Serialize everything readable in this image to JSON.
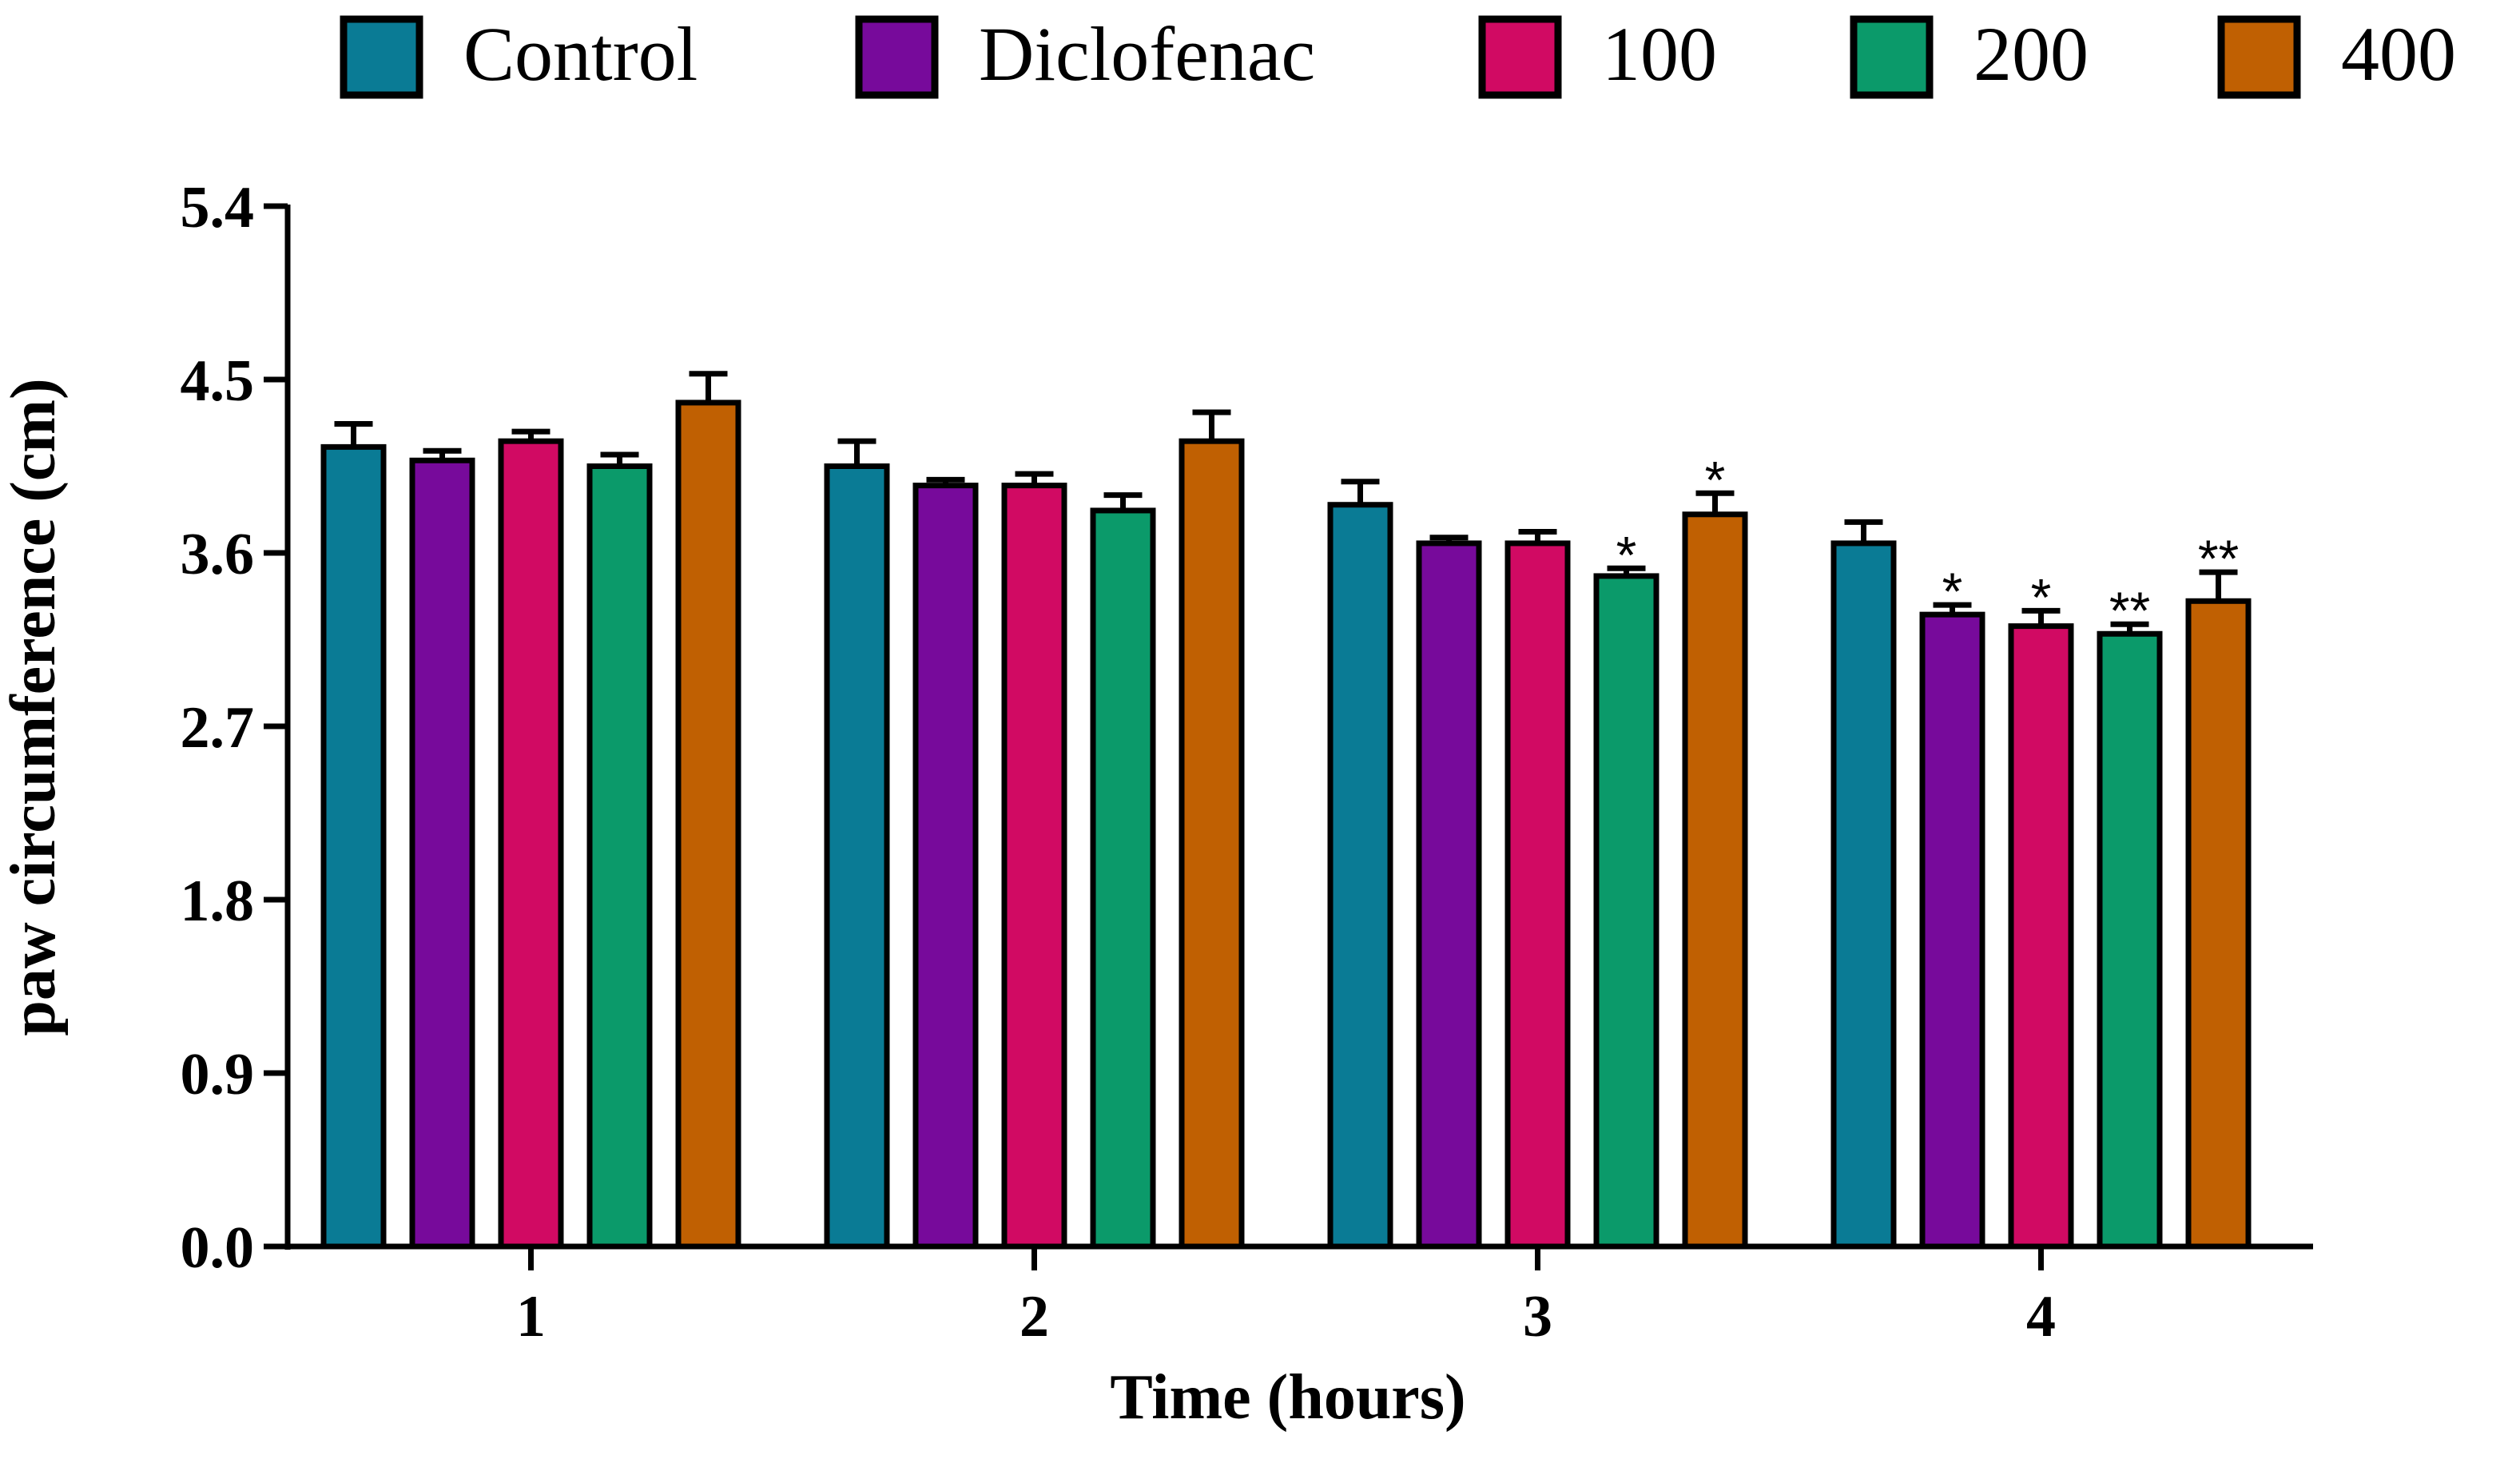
{
  "chart_data": {
    "type": "bar",
    "title": "",
    "xlabel": "Time (hours)",
    "ylabel": "paw circumference (cm)",
    "ylim": [
      0,
      5.4
    ],
    "yticks": [
      "0.0",
      "0.9",
      "1.8",
      "2.7",
      "3.6",
      "4.5",
      "5.4"
    ],
    "categories": [
      "1",
      "2",
      "3",
      "4"
    ],
    "grid": false,
    "legend_position": "top",
    "series": [
      {
        "name": "Control",
        "color": "#0a7b95",
        "values": [
          4.15,
          4.05,
          3.85,
          3.65
        ],
        "errors": [
          0.12,
          0.13,
          0.12,
          0.11
        ],
        "annotations": [
          "",
          "",
          "",
          ""
        ]
      },
      {
        "name": "Diclofenac",
        "color": "#770a9b",
        "values": [
          4.08,
          3.95,
          3.65,
          3.28
        ],
        "errors": [
          0.05,
          0.03,
          0.03,
          0.05
        ],
        "annotations": [
          "",
          "",
          "",
          "*"
        ]
      },
      {
        "name": "100",
        "color": "#d10a63",
        "values": [
          4.18,
          3.95,
          3.65,
          3.22
        ],
        "errors": [
          0.05,
          0.06,
          0.06,
          0.08
        ],
        "annotations": [
          "",
          "",
          "",
          "*"
        ]
      },
      {
        "name": "200",
        "color": "#0b9a6a",
        "values": [
          4.05,
          3.82,
          3.48,
          3.18
        ],
        "errors": [
          0.06,
          0.08,
          0.04,
          0.05
        ],
        "annotations": [
          "",
          "",
          "*",
          "**"
        ]
      },
      {
        "name": "400",
        "color": "#c06002",
        "values": [
          4.38,
          4.18,
          3.8,
          3.35
        ],
        "errors": [
          0.15,
          0.15,
          0.11,
          0.15
        ],
        "annotations": [
          "",
          "",
          "*",
          "**"
        ]
      }
    ]
  }
}
